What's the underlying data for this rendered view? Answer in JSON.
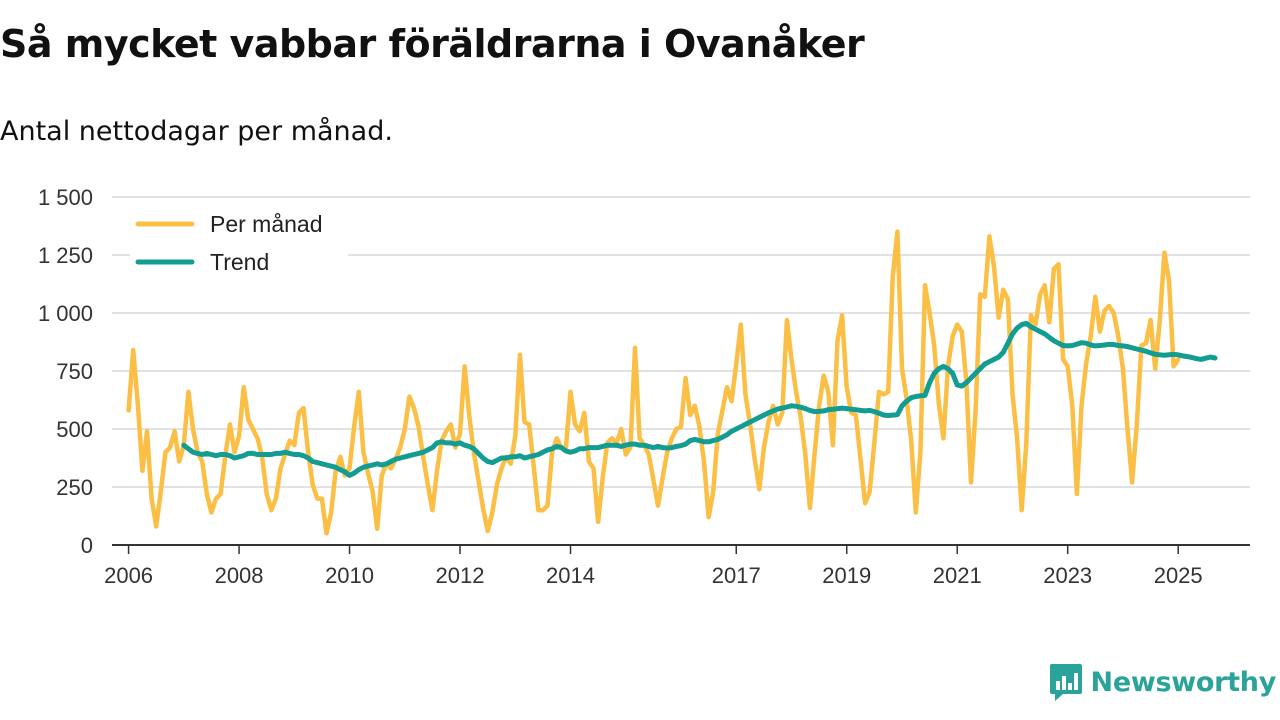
{
  "title": "Så mycket vabbar föräldrarna i Ovanåker",
  "subtitle": "Antal nettodagar per månad.",
  "brand": "Newsworthy",
  "colors": {
    "monthly": "#fbbf45",
    "trend": "#129c92",
    "grid": "#d9d9d9",
    "axis": "#333333",
    "brand": "#2aa39a"
  },
  "chart_data": {
    "type": "line",
    "title": "Så mycket vabbar föräldrarna i Ovanåker",
    "subtitle": "Antal nettodagar per månad.",
    "xlabel": "",
    "ylabel": "",
    "xlim": [
      2005.7,
      2026.3
    ],
    "ylim": [
      0,
      1500
    ],
    "yticks": [
      0,
      250,
      500,
      750,
      1000,
      1250,
      1500
    ],
    "ytick_labels": [
      "0",
      "250",
      "500",
      "750",
      "1 000",
      "1 250",
      "1 500"
    ],
    "xticks": [
      2006,
      2008,
      2010,
      2012,
      2014,
      2017,
      2019,
      2021,
      2023,
      2025
    ],
    "xtick_labels": [
      "2006",
      "2008",
      "2010",
      "2012",
      "2014",
      "2017",
      "2019",
      "2021",
      "2023",
      "2025"
    ],
    "grid": true,
    "legend_position": "top-left",
    "series": [
      {
        "name": "Per månad",
        "start_year": 2006,
        "values": [
          580,
          840,
          610,
          320,
          490,
          200,
          80,
          230,
          400,
          420,
          490,
          360,
          430,
          660,
          500,
          400,
          360,
          220,
          140,
          200,
          220,
          380,
          520,
          400,
          470,
          680,
          540,
          500,
          460,
          380,
          220,
          150,
          200,
          330,
          390,
          450,
          430,
          570,
          590,
          400,
          260,
          200,
          200,
          50,
          140,
          320,
          380,
          300,
          330,
          510,
          660,
          400,
          310,
          230,
          70,
          300,
          350,
          330,
          370,
          420,
          500,
          640,
          590,
          510,
          380,
          260,
          150,
          320,
          450,
          490,
          520,
          420,
          480,
          770,
          560,
          400,
          280,
          160,
          60,
          140,
          260,
          330,
          380,
          350,
          470,
          820,
          530,
          520,
          340,
          150,
          150,
          170,
          400,
          460,
          420,
          420,
          660,
          520,
          490,
          570,
          360,
          330,
          100,
          290,
          440,
          460,
          440,
          500,
          390,
          420,
          850,
          460,
          430,
          390,
          280,
          170,
          290,
          400,
          460,
          500,
          510,
          720,
          560,
          600,
          510,
          360,
          120,
          230,
          480,
          580,
          680,
          620,
          780,
          950,
          650,
          520,
          370,
          240,
          420,
          530,
          600,
          520,
          570,
          970,
          800,
          660,
          550,
          390,
          160,
          390,
          600,
          730,
          660,
          430,
          880,
          990,
          680,
          570,
          560,
          370,
          180,
          230,
          440,
          660,
          650,
          660,
          1160,
          1350,
          760,
          630,
          450,
          140,
          400,
          1120,
          1000,
          860,
          610,
          460,
          770,
          900,
          950,
          920,
          700,
          270,
          580,
          1080,
          1070,
          1330,
          1200,
          980,
          1100,
          1060,
          650,
          460,
          150,
          440,
          990,
          950,
          1080,
          1120,
          960,
          1190,
          1210,
          800,
          770,
          600,
          220,
          600,
          780,
          900,
          1070,
          920,
          1010,
          1030,
          1000,
          900,
          760,
          500,
          270,
          520,
          860,
          870,
          970,
          760,
          970,
          1260,
          1140,
          770,
          800
        ]
      },
      {
        "name": "Trend",
        "start_year": 2007,
        "values": [
          430,
          415,
          400,
          395,
          390,
          395,
          390,
          385,
          390,
          390,
          385,
          375,
          380,
          385,
          395,
          395,
          390,
          390,
          390,
          390,
          395,
          395,
          400,
          395,
          390,
          390,
          385,
          375,
          360,
          355,
          350,
          345,
          340,
          335,
          325,
          315,
          300,
          310,
          325,
          335,
          340,
          345,
          350,
          345,
          350,
          360,
          370,
          375,
          380,
          385,
          390,
          395,
          400,
          410,
          420,
          440,
          445,
          440,
          440,
          435,
          440,
          430,
          425,
          415,
          395,
          375,
          360,
          355,
          365,
          375,
          375,
          380,
          380,
          385,
          375,
          380,
          385,
          390,
          400,
          410,
          415,
          425,
          420,
          405,
          400,
          405,
          415,
          415,
          420,
          420,
          420,
          425,
          430,
          430,
          430,
          425,
          430,
          435,
          435,
          430,
          430,
          425,
          420,
          425,
          420,
          418,
          420,
          425,
          428,
          435,
          450,
          455,
          450,
          445,
          445,
          450,
          455,
          465,
          475,
          490,
          500,
          510,
          520,
          530,
          540,
          550,
          560,
          570,
          578,
          586,
          590,
          595,
          600,
          598,
          594,
          588,
          580,
          575,
          576,
          578,
          583,
          585,
          588,
          590,
          588,
          585,
          583,
          580,
          578,
          580,
          575,
          568,
          560,
          558,
          560,
          562,
          600,
          620,
          635,
          640,
          643,
          645,
          700,
          740,
          760,
          770,
          760,
          740,
          690,
          685,
          700,
          720,
          740,
          760,
          780,
          790,
          800,
          810,
          830,
          870,
          910,
          935,
          950,
          955,
          940,
          930,
          920,
          910,
          895,
          880,
          870,
          860,
          858,
          860,
          866,
          872,
          870,
          862,
          858,
          860,
          862,
          865,
          864,
          860,
          858,
          855,
          850,
          845,
          840,
          835,
          828,
          822,
          820,
          818,
          820,
          822,
          820,
          815,
          812,
          808,
          803,
          800,
          805,
          810,
          806
        ]
      }
    ]
  }
}
